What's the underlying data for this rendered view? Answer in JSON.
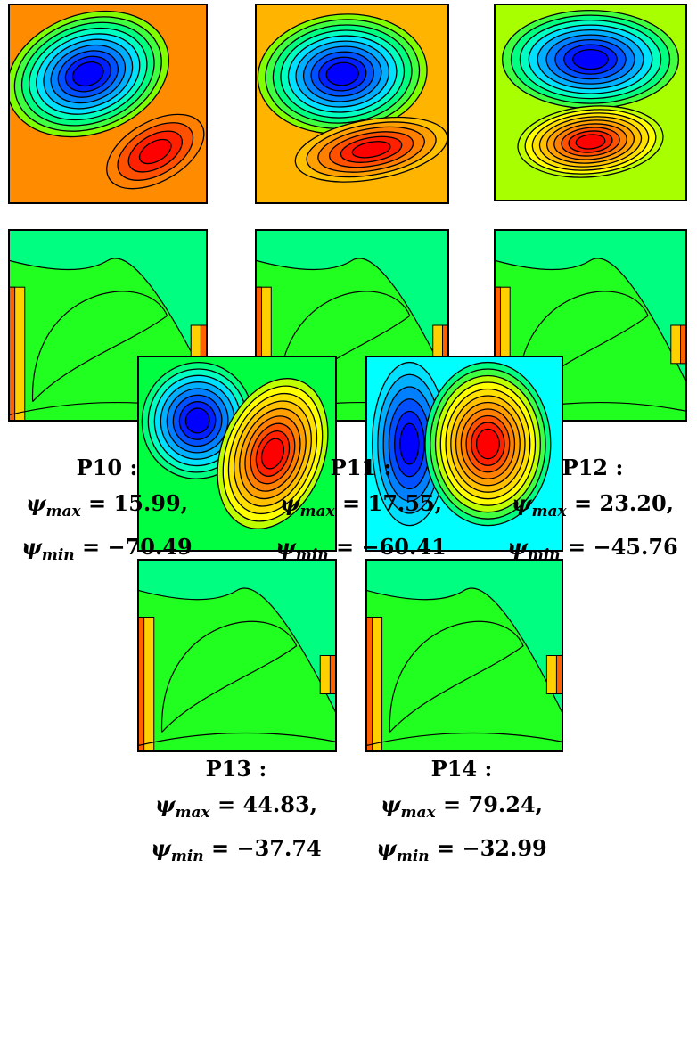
{
  "panels": [
    {
      "label": "P10 :",
      "max": {
        "symbol": "ψ",
        "sub": "max",
        "text": "= 15.99,"
      },
      "min": {
        "symbol": "ψ",
        "sub": "min",
        "text": "= −70.49"
      }
    },
    {
      "label": "P11 :",
      "max": {
        "symbol": "ψ",
        "sub": "max",
        "text": "= 17.55,"
      },
      "min": {
        "symbol": "ψ",
        "sub": "min",
        "text": "= −60.41"
      }
    },
    {
      "label": "P12 :",
      "max": {
        "symbol": "ψ",
        "sub": "max",
        "text": "= 23.20,"
      },
      "min": {
        "symbol": "ψ",
        "sub": "min",
        "text": "= −45.76"
      }
    },
    {
      "label": "P13 :",
      "max": {
        "symbol": "ψ",
        "sub": "max",
        "text": "= 44.83,"
      },
      "min": {
        "symbol": "ψ",
        "sub": "min",
        "text": "= −37.74"
      }
    },
    {
      "label": "P14 :",
      "max": {
        "symbol": "ψ",
        "sub": "max",
        "text": "= 79.24,"
      },
      "min": {
        "symbol": "ψ",
        "sub": "min",
        "text": "= −32.99"
      }
    }
  ]
}
